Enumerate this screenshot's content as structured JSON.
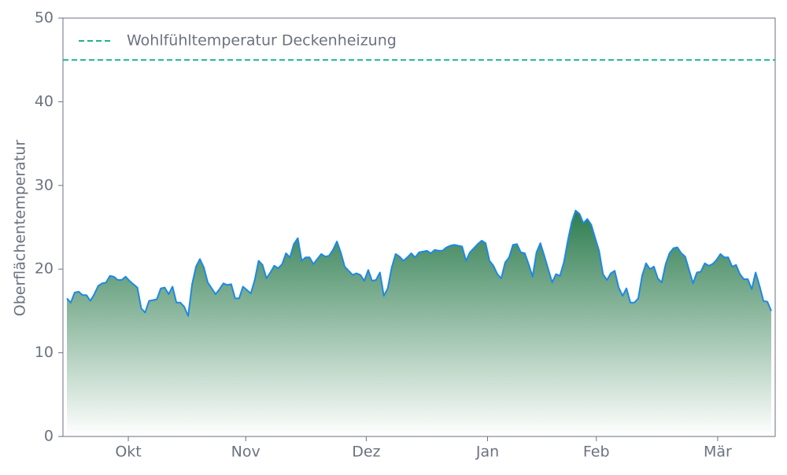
{
  "chart_data": {
    "type": "area",
    "ylabel": "Oberflächentemperatur",
    "x": [
      1,
      2,
      3,
      4,
      5,
      6,
      7,
      8,
      9,
      10,
      11,
      12,
      13,
      14,
      15,
      16,
      17,
      18,
      19,
      20,
      21,
      22,
      23,
      24,
      25,
      26,
      27,
      28,
      29,
      30,
      31,
      32,
      33,
      34,
      35,
      36,
      37,
      38,
      39,
      40,
      41,
      42,
      43,
      44,
      45,
      46,
      47,
      48,
      49,
      50,
      51,
      52,
      53,
      54,
      55,
      56,
      57,
      58,
      59,
      60,
      61,
      62,
      63,
      64,
      65,
      66,
      67,
      68,
      69,
      70,
      71,
      72,
      73,
      74,
      75,
      76,
      77,
      78,
      79,
      80,
      81,
      82,
      83,
      84,
      85,
      86,
      87,
      88,
      89,
      90,
      91,
      92,
      93,
      94,
      95,
      96,
      97,
      98,
      99,
      100,
      101,
      102,
      103,
      104,
      105,
      106,
      107,
      108,
      109,
      110,
      111,
      112,
      113,
      114,
      115,
      116,
      117,
      118,
      119,
      120,
      121,
      122,
      123,
      124,
      125,
      126,
      127,
      128,
      129,
      130,
      131,
      132,
      133,
      134,
      135,
      136,
      137,
      138,
      139,
      140,
      141,
      142,
      143,
      144,
      145,
      146,
      147,
      148,
      149,
      150,
      151,
      152,
      153,
      154,
      155,
      156,
      157,
      158,
      159,
      160,
      161,
      162,
      163,
      164,
      165,
      166,
      167,
      168,
      169,
      170,
      171,
      172,
      173,
      174,
      175,
      176,
      177,
      178,
      179,
      180,
      181
    ],
    "values": [
      16.5,
      16,
      17.2,
      17.3,
      16.9,
      16.9,
      16.2,
      17,
      18,
      18.3,
      18.4,
      19.2,
      19.1,
      18.7,
      18.7,
      19.1,
      18.6,
      18.2,
      17.8,
      15.3,
      14.8,
      16.2,
      16.3,
      16.4,
      17.7,
      17.8,
      17.0,
      17.9,
      16,
      16,
      15.5,
      14.4,
      18.2,
      20.3,
      21.2,
      20.2,
      18.4,
      17.7,
      17,
      17.6,
      18.3,
      18.1,
      18.2,
      16.5,
      16.5,
      17.9,
      17.5,
      17.1,
      18.7,
      21,
      20.5,
      18.9,
      19.6,
      20.4,
      20.1,
      20.6,
      21.9,
      21.4,
      23,
      23.7,
      21,
      21.4,
      21.4,
      20.6,
      21.2,
      21.8,
      21.5,
      21.6,
      22.3,
      23.3,
      22,
      20.3,
      19.8,
      19.3,
      19.5,
      19.3,
      18.6,
      19.9,
      18.6,
      18.7,
      19.6,
      16.8,
      17.7,
      20.2,
      21.8,
      21.5,
      21,
      21.4,
      21.9,
      21.4,
      22,
      22.1,
      22.2,
      21.9,
      22.3,
      22.2,
      22.2,
      22.6,
      22.8,
      22.9,
      22.8,
      22.7,
      21,
      22,
      22.5,
      23,
      23.4,
      23.1,
      21,
      20.4,
      19.4,
      18.9,
      20.8,
      21.4,
      22.9,
      23,
      22,
      21.9,
      20.6,
      19.1,
      22,
      23.1,
      21.6,
      20,
      18.4,
      19.4,
      19.2,
      20.8,
      23.4,
      25.6,
      27,
      26.6,
      25.5,
      26,
      25.3,
      23.7,
      22.2,
      19.4,
      18.7,
      19.5,
      19.8,
      17.8,
      16.8,
      17.7,
      16,
      16,
      16.5,
      19.2,
      20.7,
      20,
      20.3,
      18.9,
      18.4,
      20.6,
      21.9,
      22.5,
      22.6,
      21.9,
      21.5,
      19.9,
      18.3,
      19.6,
      19.7,
      20.7,
      20.4,
      20.6,
      21.1,
      21.8,
      21.4,
      21.4,
      20.3,
      20.5,
      19.4,
      18.8,
      18.8,
      17.6,
      19.6,
      18,
      16.2,
      16.1,
      15
    ],
    "color": "#1e88e5",
    "fill_color": "#2e7d4f",
    "xlim": [
      0,
      182
    ],
    "xticks": [
      {
        "value": 16.7,
        "label": "Okt"
      },
      {
        "value": 46.7,
        "label": "Nov"
      },
      {
        "value": 77.5,
        "label": "Dez"
      },
      {
        "value": 108.5,
        "label": "Jan"
      },
      {
        "value": 136.3,
        "label": "Feb"
      },
      {
        "value": 167.3,
        "label": "Mär"
      }
    ],
    "ylim": [
      0,
      50
    ],
    "yticks": [
      0,
      10,
      20,
      30,
      40,
      50
    ],
    "reference_lines": [
      {
        "value": 45,
        "label": "Wohlfühltemperatur Deckenheizung",
        "color": "#1db38b"
      }
    ],
    "legend": "upper left"
  }
}
